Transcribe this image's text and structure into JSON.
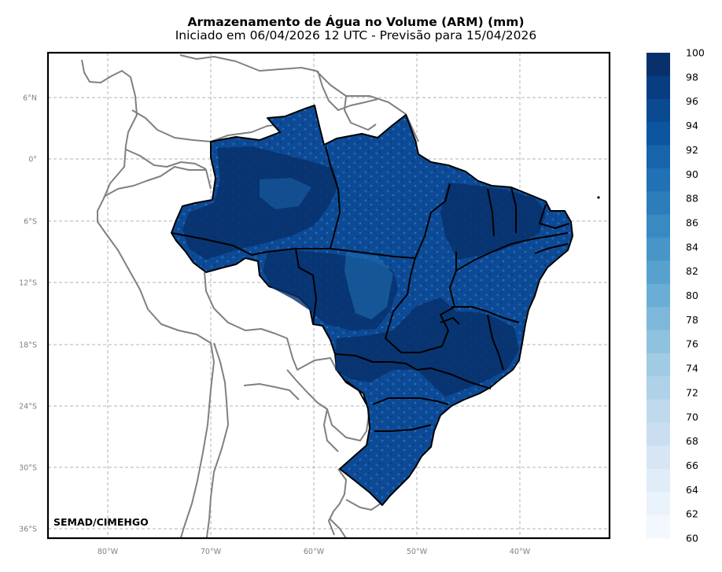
{
  "title": {
    "main": "Armazenamento de Água no Volume (ARM) (mm)",
    "subtitle": "Iniciado em 06/04/2026 12 UTC - Previsão para 15/04/2026"
  },
  "map": {
    "lat_labels": [
      "6°N",
      "0°",
      "6°S",
      "12°S",
      "18°S",
      "24°S",
      "30°S",
      "36°S"
    ],
    "lon_labels": [
      "80°W",
      "70°W",
      "60°W",
      "50°W",
      "40°W"
    ],
    "credit": "SEMAD/CIMEHGO",
    "variable_units": "mm",
    "gridlines": true,
    "projection_extent": {
      "lon_min": -86,
      "lon_max": -31.5,
      "lat_min": -36.5,
      "lat_max": 10
    }
  },
  "colorbar": {
    "labels": [
      "100",
      "98",
      "96",
      "94",
      "92",
      "90",
      "88",
      "86",
      "84",
      "82",
      "80",
      "78",
      "76",
      "74",
      "72",
      "70",
      "68",
      "66",
      "64",
      "62",
      "60"
    ],
    "colors": [
      "#08306b",
      "#083e81",
      "#0a4a90",
      "#0c56a0",
      "#1764ab",
      "#2171b5",
      "#2d7dbb",
      "#3a8ac2",
      "#4896c8",
      "#58a1cf",
      "#6aaed6",
      "#7db8da",
      "#8fc2de",
      "#a0cbe2",
      "#b0d2e8",
      "#c1d9ed",
      "#cbdef1",
      "#d6e6f4",
      "#e0ecf8",
      "#eaf2fb",
      "#f2f8fd"
    ],
    "placement": "right"
  }
}
